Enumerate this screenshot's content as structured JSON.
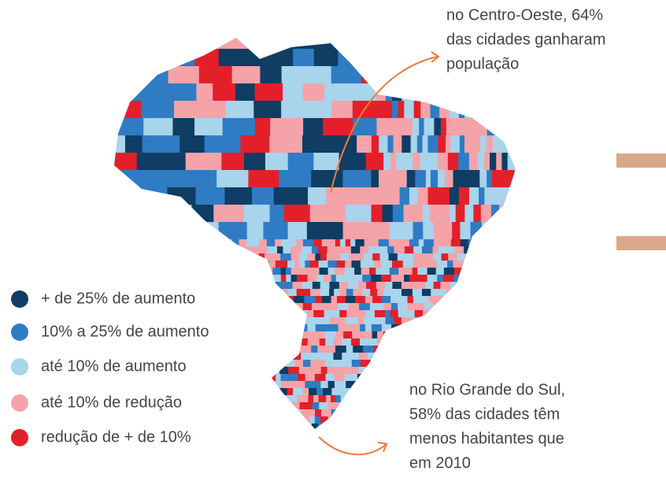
{
  "annotations": [
    {
      "lines": [
        "no Centro-Oeste, 64%",
        "das cidades ganharam",
        "população"
      ]
    },
    {
      "lines": [
        "no Rio Grande do Sul,",
        "58% das cidades têm",
        "menos habitantes que",
        "em 2010"
      ]
    }
  ],
  "legend": [
    {
      "label": "+ de 25% de aumento",
      "color": "#0f3d63"
    },
    {
      "label": "10% a 25% de aumento",
      "color": "#2f7cc4"
    },
    {
      "label": "até 10% de aumento",
      "color": "#a8d4ec"
    },
    {
      "label": "até 10% de redução",
      "color": "#f4a3a8"
    },
    {
      "label": "redução de + de 10%",
      "color": "#e3202a"
    }
  ]
}
